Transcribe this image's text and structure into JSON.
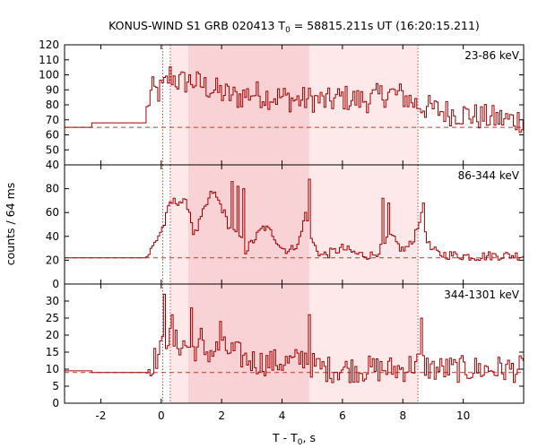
{
  "chart_data": {
    "type": "line",
    "title": "KONUS-WIND S1 GRB 020413 T",
    "title_sub": "0",
    "title_rest": " = 58815.211s UT (16:20:15.211)",
    "xlabel": "T - T",
    "xlabel_sub": "0",
    "xlabel_rest": ", s",
    "ylabel": "counts / 64 ms",
    "xlim": [
      -3.2,
      12.0
    ],
    "x_ticks": [
      -2,
      0,
      2,
      4,
      6,
      8,
      10
    ],
    "x_tick_labels": [
      "-2",
      "0",
      "2",
      "4",
      "6",
      "8",
      "10"
    ],
    "pre_trigger_end": -0.5,
    "dotted_markers": [
      0.05,
      0.3,
      8.5
    ],
    "shaded_regions": [
      {
        "x0": 0.3,
        "x1": 8.5,
        "color": "#fde9e9"
      },
      {
        "x0": 0.9,
        "x1": 4.9,
        "color": "#f8d2d4"
      }
    ],
    "line_color": "#a30000",
    "panels": [
      {
        "label": "23-86 keV",
        "ylim": [
          40,
          120
        ],
        "y_ticks": [
          40,
          50,
          60,
          70,
          80,
          90,
          100,
          110,
          120
        ],
        "y_tick_labels": [
          "40",
          "50",
          "60",
          "70",
          "80",
          "90",
          "100",
          "110",
          "120"
        ],
        "background": 65,
        "pre_levels": [
          [
            -3.2,
            -2.3,
            65
          ],
          [
            -2.3,
            -0.5,
            68
          ]
        ],
        "anchors": [
          [
            -0.5,
            69
          ],
          [
            -0.45,
            80
          ],
          [
            -0.3,
            90
          ],
          [
            -0.1,
            88
          ],
          [
            0.1,
            92
          ],
          [
            0.3,
            100
          ],
          [
            0.6,
            95
          ],
          [
            1.0,
            96
          ],
          [
            1.5,
            92
          ],
          [
            2.0,
            88
          ],
          [
            2.5,
            85
          ],
          [
            3.0,
            88
          ],
          [
            3.5,
            86
          ],
          [
            4.0,
            85
          ],
          [
            4.5,
            83
          ],
          [
            5.0,
            84
          ],
          [
            5.5,
            82
          ],
          [
            6.0,
            85
          ],
          [
            6.5,
            83
          ],
          [
            7.0,
            84
          ],
          [
            7.5,
            88
          ],
          [
            8.0,
            86
          ],
          [
            8.5,
            80
          ],
          [
            9.0,
            77
          ],
          [
            9.5,
            75
          ],
          [
            10.0,
            74
          ],
          [
            10.5,
            72
          ],
          [
            11.0,
            71
          ],
          [
            11.5,
            70
          ],
          [
            12.0,
            70
          ]
        ],
        "noise": 9
      },
      {
        "label": "86-344 keV",
        "ylim": [
          0,
          100
        ],
        "y_ticks": [
          0,
          20,
          40,
          60,
          80
        ],
        "y_tick_labels": [
          "0",
          "20",
          "40",
          "60",
          "80"
        ],
        "background": 22,
        "pre_levels": [
          [
            -3.2,
            -0.5,
            22
          ]
        ],
        "anchors": [
          [
            -0.5,
            22
          ],
          [
            -0.3,
            30
          ],
          [
            -0.1,
            40
          ],
          [
            0.1,
            50
          ],
          [
            0.3,
            68
          ],
          [
            0.6,
            70
          ],
          [
            0.9,
            66
          ],
          [
            1.1,
            40
          ],
          [
            1.4,
            60
          ],
          [
            1.7,
            78
          ],
          [
            2.0,
            65
          ],
          [
            2.3,
            45
          ],
          [
            2.6,
            40
          ],
          [
            2.8,
            28
          ],
          [
            3.1,
            38
          ],
          [
            3.4,
            48
          ],
          [
            3.7,
            42
          ],
          [
            4.0,
            30
          ],
          [
            4.3,
            28
          ],
          [
            4.6,
            38
          ],
          [
            4.8,
            62
          ],
          [
            5.0,
            35
          ],
          [
            5.3,
            24
          ],
          [
            5.6,
            26
          ],
          [
            6.0,
            30
          ],
          [
            6.5,
            25
          ],
          [
            7.0,
            24
          ],
          [
            7.3,
            30
          ],
          [
            7.6,
            40
          ],
          [
            8.0,
            28
          ],
          [
            8.3,
            34
          ],
          [
            8.6,
            58
          ],
          [
            8.9,
            30
          ],
          [
            9.2,
            25
          ],
          [
            9.8,
            24
          ],
          [
            10.5,
            23
          ],
          [
            11.0,
            24
          ],
          [
            12.0,
            24
          ]
        ],
        "noise": 4,
        "spikes": [
          [
            2.3,
            86
          ],
          [
            2.5,
            82
          ],
          [
            2.7,
            80
          ],
          [
            4.88,
            88
          ],
          [
            7.3,
            72
          ],
          [
            7.5,
            68
          ],
          [
            8.65,
            68
          ]
        ]
      },
      {
        "label": "344-1301 keV",
        "ylim": [
          0,
          35
        ],
        "y_ticks": [
          0,
          5,
          10,
          15,
          20,
          25,
          30
        ],
        "y_tick_labels": [
          "0",
          "5",
          "10",
          "15",
          "20",
          "25",
          "30"
        ],
        "background": 9,
        "pre_levels": [
          [
            -3.2,
            -2.3,
            9.5
          ],
          [
            -2.3,
            -0.5,
            9
          ]
        ],
        "anchors": [
          [
            -0.5,
            9
          ],
          [
            -0.3,
            12
          ],
          [
            0.0,
            15
          ],
          [
            0.1,
            20
          ],
          [
            0.4,
            18
          ],
          [
            0.8,
            17
          ],
          [
            1.2,
            16
          ],
          [
            1.6,
            15
          ],
          [
            2.0,
            16
          ],
          [
            2.4,
            15
          ],
          [
            2.8,
            13
          ],
          [
            3.2,
            12
          ],
          [
            3.6,
            12
          ],
          [
            4.0,
            12
          ],
          [
            4.4,
            12
          ],
          [
            4.8,
            14
          ],
          [
            5.0,
            11
          ],
          [
            5.5,
            10
          ],
          [
            6.0,
            10
          ],
          [
            6.5,
            10
          ],
          [
            7.0,
            10
          ],
          [
            7.5,
            10
          ],
          [
            8.0,
            10
          ],
          [
            8.5,
            12
          ],
          [
            9.0,
            10
          ],
          [
            10.0,
            10
          ],
          [
            11.0,
            10
          ],
          [
            12.0,
            10
          ]
        ],
        "noise": 4,
        "spikes": [
          [
            0.1,
            32
          ],
          [
            0.3,
            26
          ],
          [
            1.0,
            28
          ],
          [
            1.3,
            22
          ],
          [
            1.9,
            24
          ],
          [
            4.9,
            26
          ],
          [
            8.6,
            25
          ]
        ]
      }
    ]
  }
}
